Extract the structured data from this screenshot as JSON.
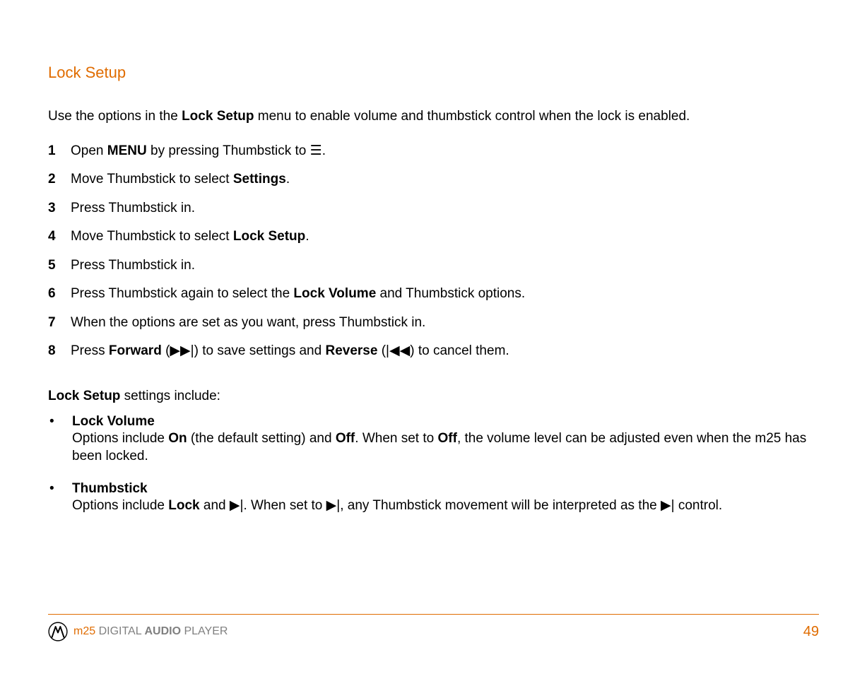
{
  "heading": "Lock Setup",
  "intro_parts": [
    "Use the options in the ",
    "Lock Setup",
    " menu to enable volume and thumbstick control when the lock is enabled."
  ],
  "steps": [
    {
      "num": "1",
      "segments": [
        {
          "t": "Open "
        },
        {
          "t": "MENU",
          "b": true
        },
        {
          "t": " by pressing Thumbstick to "
        },
        {
          "t": "☰",
          "g": true
        },
        {
          "t": "."
        }
      ]
    },
    {
      "num": "2",
      "segments": [
        {
          "t": "Move Thumbstick to select "
        },
        {
          "t": "Settings",
          "b": true
        },
        {
          "t": "."
        }
      ]
    },
    {
      "num": "3",
      "segments": [
        {
          "t": "Press Thumbstick in."
        }
      ]
    },
    {
      "num": "4",
      "segments": [
        {
          "t": "Move Thumbstick to select "
        },
        {
          "t": "Lock Setup",
          "b": true
        },
        {
          "t": "."
        }
      ]
    },
    {
      "num": "5",
      "segments": [
        {
          "t": "Press Thumbstick in."
        }
      ]
    },
    {
      "num": "6",
      "segments": [
        {
          "t": "Press Thumbstick again to select the "
        },
        {
          "t": "Lock Volume",
          "b": true
        },
        {
          "t": " and Thumbstick options."
        }
      ]
    },
    {
      "num": "7",
      "segments": [
        {
          "t": "When the options are set as you want, press Thumbstick in."
        }
      ]
    },
    {
      "num": "8",
      "segments": [
        {
          "t": "Press "
        },
        {
          "t": "Forward",
          "b": true
        },
        {
          "t": " ("
        },
        {
          "t": "▶▶|",
          "g": true
        },
        {
          "t": ") to save settings and "
        },
        {
          "t": "Reverse",
          "b": true
        },
        {
          "t": " ("
        },
        {
          "t": "|◀◀",
          "g": true
        },
        {
          "t": ") to cancel them."
        }
      ]
    }
  ],
  "sub_parts": [
    {
      "t": "Lock Setup",
      "b": true
    },
    {
      "t": " settings include:"
    }
  ],
  "bullets": [
    {
      "title": "Lock Volume",
      "desc": [
        {
          "t": "Options include "
        },
        {
          "t": "On",
          "b": true
        },
        {
          "t": " (the default setting) and "
        },
        {
          "t": "Off",
          "b": true
        },
        {
          "t": ". When set to "
        },
        {
          "t": "Off",
          "b": true
        },
        {
          "t": ", the volume level can be adjusted even when the m25 has been locked."
        }
      ]
    },
    {
      "title": "Thumbstick",
      "desc": [
        {
          "t": "Options include "
        },
        {
          "t": "Lock",
          "b": true
        },
        {
          "t": " and "
        },
        {
          "t": "▶|",
          "g": true
        },
        {
          "t": ". When set to "
        },
        {
          "t": "▶|",
          "g": true
        },
        {
          "t": ", any Thumbstick movement will be interpreted as the "
        },
        {
          "t": "▶|",
          "g": true
        },
        {
          "t": " control."
        }
      ]
    }
  ],
  "footer": {
    "product_prefix": "m25",
    "product_mid": " DIGITAL ",
    "product_bold": "AUDIO",
    "product_suffix": " PLAYER",
    "page_number": "49"
  },
  "colors": {
    "accent": "#e06c00",
    "text": "#000000",
    "gray": "#808080",
    "background": "#ffffff"
  }
}
